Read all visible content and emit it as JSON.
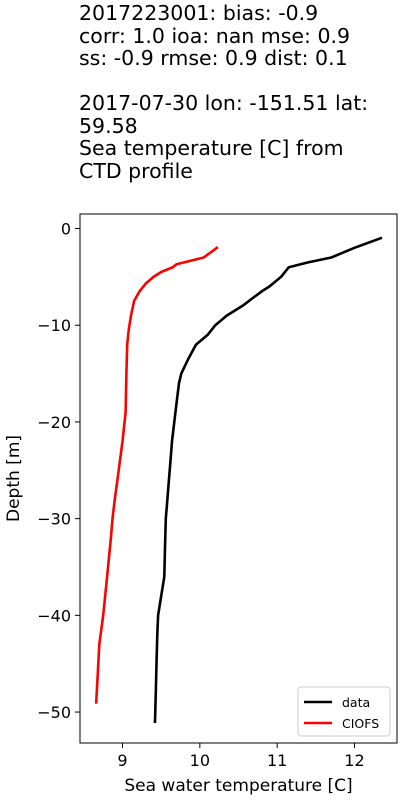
{
  "title": "2017223001: bias: -0.9\ncorr: 1.0  ioa: nan  mse: 0.9\nss: -0.9  rmse: 0.9  dist: 0.1\n\n2017-07-30 lon: -151.51 lat:\n59.58\nSea temperature [C] from\nCTD profile",
  "chart_data": {
    "type": "line",
    "xlabel": "Sea water temperature [C]",
    "ylabel": "Depth [m]",
    "xlim": [
      8.45,
      12.55
    ],
    "ylim": [
      -53.2,
      1.5
    ],
    "xticks": [
      9,
      10,
      11,
      12
    ],
    "yticks": [
      0,
      -10,
      -20,
      -30,
      -40,
      -50
    ],
    "ytick_labels": [
      "0",
      "−10",
      "−20",
      "−30",
      "−40",
      "−50"
    ],
    "grid": false,
    "legend_position": "lower right",
    "series": [
      {
        "name": "data",
        "color": "#000000",
        "points": [
          [
            12.34,
            -1
          ],
          [
            12.0,
            -2
          ],
          [
            11.7,
            -3
          ],
          [
            11.4,
            -3.5
          ],
          [
            11.15,
            -4
          ],
          [
            11.05,
            -5
          ],
          [
            10.9,
            -6
          ],
          [
            10.8,
            -6.5
          ],
          [
            10.55,
            -8
          ],
          [
            10.35,
            -9
          ],
          [
            10.2,
            -10
          ],
          [
            10.1,
            -11
          ],
          [
            9.95,
            -12
          ],
          [
            9.85,
            -13.5
          ],
          [
            9.76,
            -15
          ],
          [
            9.73,
            -16
          ],
          [
            9.7,
            -18
          ],
          [
            9.67,
            -20
          ],
          [
            9.64,
            -22
          ],
          [
            9.62,
            -24
          ],
          [
            9.6,
            -26
          ],
          [
            9.58,
            -28
          ],
          [
            9.56,
            -30
          ],
          [
            9.55,
            -33
          ],
          [
            9.54,
            -36
          ],
          [
            9.5,
            -38
          ],
          [
            9.46,
            -40
          ],
          [
            9.45,
            -42
          ],
          [
            9.44,
            -45
          ],
          [
            9.43,
            -48
          ],
          [
            9.42,
            -51
          ]
        ]
      },
      {
        "name": "CIOFS",
        "color": "#ff0000",
        "points": [
          [
            10.22,
            -2
          ],
          [
            10.05,
            -3
          ],
          [
            9.7,
            -3.7
          ],
          [
            9.65,
            -4
          ],
          [
            9.5,
            -4.5
          ],
          [
            9.4,
            -5
          ],
          [
            9.3,
            -5.7
          ],
          [
            9.22,
            -6.5
          ],
          [
            9.15,
            -7.5
          ],
          [
            9.11,
            -9
          ],
          [
            9.08,
            -10.5
          ],
          [
            9.06,
            -12
          ],
          [
            9.05,
            -15
          ],
          [
            9.04,
            -19
          ],
          [
            9.0,
            -22
          ],
          [
            8.95,
            -25
          ],
          [
            8.9,
            -28
          ],
          [
            8.87,
            -30
          ],
          [
            8.85,
            -32
          ],
          [
            8.8,
            -36
          ],
          [
            8.75,
            -40
          ],
          [
            8.7,
            -43
          ],
          [
            8.68,
            -46
          ],
          [
            8.66,
            -49
          ]
        ]
      }
    ]
  }
}
